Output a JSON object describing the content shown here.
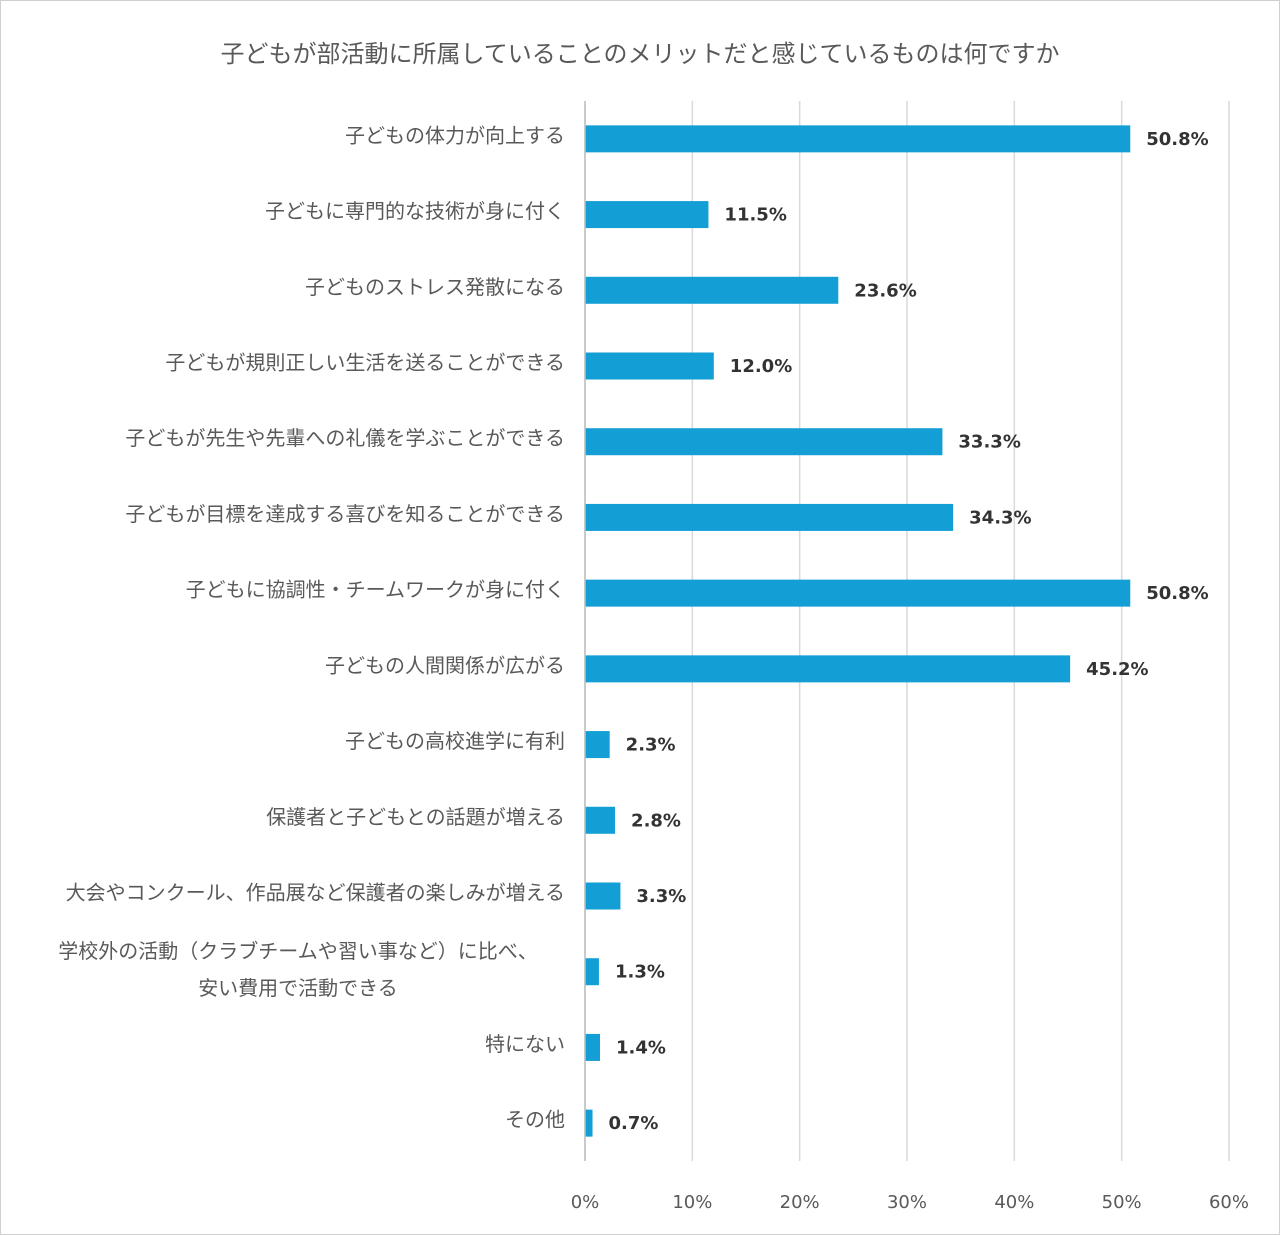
{
  "chart_data": {
    "type": "bar",
    "orientation": "horizontal",
    "title": "子どもが部活動に所属していることのメリットだと感じているものは何ですか",
    "categories": [
      "子どもの体力が向上する",
      "子どもに専門的な技術が身に付く",
      "子どものストレス発散になる",
      "子どもが規則正しい生活を送ることができる",
      "子どもが先生や先輩への礼儀を学ぶことができる",
      "子どもが目標を達成する喜びを知ることができる",
      "子どもに協調性・チームワークが身に付く",
      "子どもの人間関係が広がる",
      "子どもの高校進学に有利",
      "保護者と子どもとの話題が増える",
      "大会やコンクール、作品展など保護者の楽しみが増える",
      [
        "学校外の活動（クラブチームや習い事など）に比べ、",
        "安い費用で活動できる"
      ],
      "特にない",
      "その他"
    ],
    "values": [
      50.8,
      11.5,
      23.6,
      12.0,
      33.3,
      34.3,
      50.8,
      45.2,
      2.3,
      2.8,
      3.3,
      1.3,
      1.4,
      0.7
    ],
    "value_labels": [
      "50.8%",
      "11.5%",
      "23.6%",
      "12.0%",
      "33.3%",
      "34.3%",
      "50.8%",
      "45.2%",
      "2.3%",
      "2.8%",
      "3.3%",
      "1.3%",
      "1.4%",
      "0.7%"
    ],
    "color": "#139fd5",
    "xlim": [
      0,
      60
    ],
    "xticks": [
      {
        "value": 0,
        "label": "0%"
      },
      {
        "value": 10,
        "label": "10%"
      },
      {
        "value": 20,
        "label": "20%"
      },
      {
        "value": 30,
        "label": "30%"
      },
      {
        "value": 40,
        "label": "40%"
      },
      {
        "value": 50,
        "label": "50%"
      },
      {
        "value": 60,
        "label": "60%"
      }
    ],
    "grid": true
  }
}
